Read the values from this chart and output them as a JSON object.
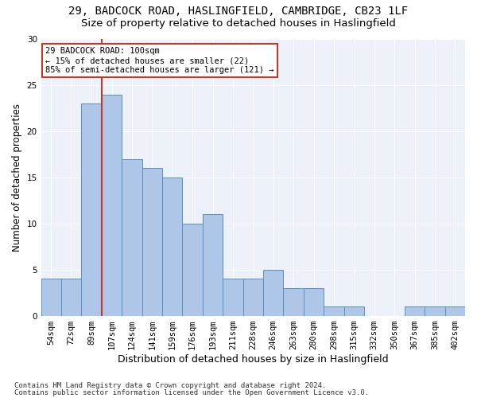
{
  "title1": "29, BADCOCK ROAD, HASLINGFIELD, CAMBRIDGE, CB23 1LF",
  "title2": "Size of property relative to detached houses in Haslingfield",
  "xlabel": "Distribution of detached houses by size in Haslingfield",
  "ylabel": "Number of detached properties",
  "categories": [
    "54sqm",
    "72sqm",
    "89sqm",
    "107sqm",
    "124sqm",
    "141sqm",
    "159sqm",
    "176sqm",
    "193sqm",
    "211sqm",
    "228sqm",
    "246sqm",
    "263sqm",
    "280sqm",
    "298sqm",
    "315sqm",
    "332sqm",
    "350sqm",
    "367sqm",
    "385sqm",
    "402sqm"
  ],
  "values": [
    4,
    4,
    23,
    24,
    17,
    16,
    15,
    10,
    11,
    4,
    4,
    5,
    3,
    3,
    1,
    1,
    0,
    0,
    1,
    1,
    1
  ],
  "bar_color": "#aec6e8",
  "bar_edge_color": "#5a8fc2",
  "vline_x_index": 2.5,
  "vline_color": "#c0392b",
  "annotation_text": "29 BADCOCK ROAD: 100sqm\n← 15% of detached houses are smaller (22)\n85% of semi-detached houses are larger (121) →",
  "annotation_box_color": "white",
  "annotation_box_edge_color": "#c0392b",
  "ylim": [
    0,
    30
  ],
  "yticks": [
    0,
    5,
    10,
    15,
    20,
    25,
    30
  ],
  "footer1": "Contains HM Land Registry data © Crown copyright and database right 2024.",
  "footer2": "Contains public sector information licensed under the Open Government Licence v3.0.",
  "bg_color": "#edf2fa",
  "title1_fontsize": 10,
  "title2_fontsize": 9.5,
  "xlabel_fontsize": 9,
  "ylabel_fontsize": 8.5,
  "tick_fontsize": 7.5,
  "annotation_fontsize": 7.5,
  "footer_fontsize": 6.5
}
